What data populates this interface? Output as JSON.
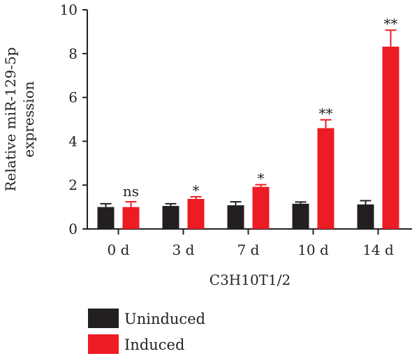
{
  "chart_data": {
    "type": "bar",
    "title": "",
    "ylabel_line1": "Relative miR-129-5p",
    "ylabel_line2": "expression",
    "xlabel": "C3H10T1/2",
    "categories": [
      "0 d",
      "3 d",
      "7 d",
      "10 d",
      "14 d"
    ],
    "ylim": [
      0,
      10
    ],
    "yticks": [
      "0",
      "2",
      "4",
      "6",
      "8",
      "10"
    ],
    "series": [
      {
        "name": "Uninduced",
        "color": "#231f20",
        "values": [
          1.0,
          1.05,
          1.08,
          1.15,
          1.12
        ],
        "errors": [
          0.15,
          0.1,
          0.16,
          0.08,
          0.17
        ]
      },
      {
        "name": "Induced",
        "color": "#ed1c24",
        "values": [
          1.0,
          1.37,
          1.92,
          4.6,
          8.32
        ],
        "errors": [
          0.24,
          0.1,
          0.1,
          0.38,
          0.75
        ]
      }
    ],
    "significance": [
      "ns",
      "*",
      "*",
      "**",
      "**"
    ],
    "legend_position": "bottom-left",
    "grid": false
  }
}
